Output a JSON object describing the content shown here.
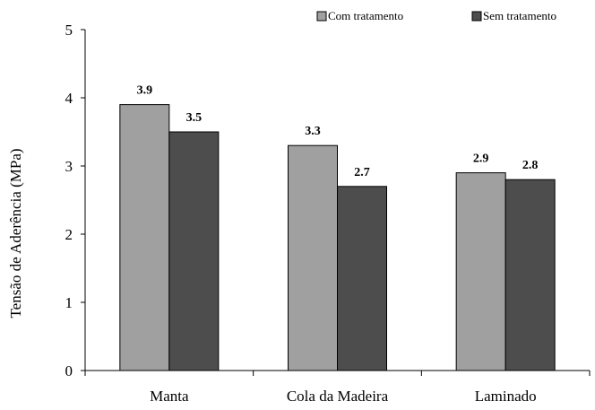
{
  "chart_data": {
    "type": "bar",
    "categories": [
      "Manta",
      "Cola da Madeira",
      "Laminado"
    ],
    "series": [
      {
        "name": "Com tratamento",
        "values": [
          3.9,
          3.3,
          2.9
        ],
        "color": "#a0a0a0"
      },
      {
        "name": "Sem tratamento",
        "values": [
          3.5,
          2.7,
          2.8
        ],
        "color": "#4d4d4d"
      }
    ],
    "ylabel": "Tensão de Aderência (MPa)",
    "xlabel": "",
    "ylim": [
      0,
      5
    ],
    "yticks": [
      0,
      1,
      2,
      3,
      4,
      5
    ],
    "data_labels": [
      [
        "3.9",
        "3.3",
        "2.9"
      ],
      [
        "3.5",
        "2.7",
        "2.8"
      ]
    ],
    "legend_position": "top-right",
    "grid": false
  }
}
